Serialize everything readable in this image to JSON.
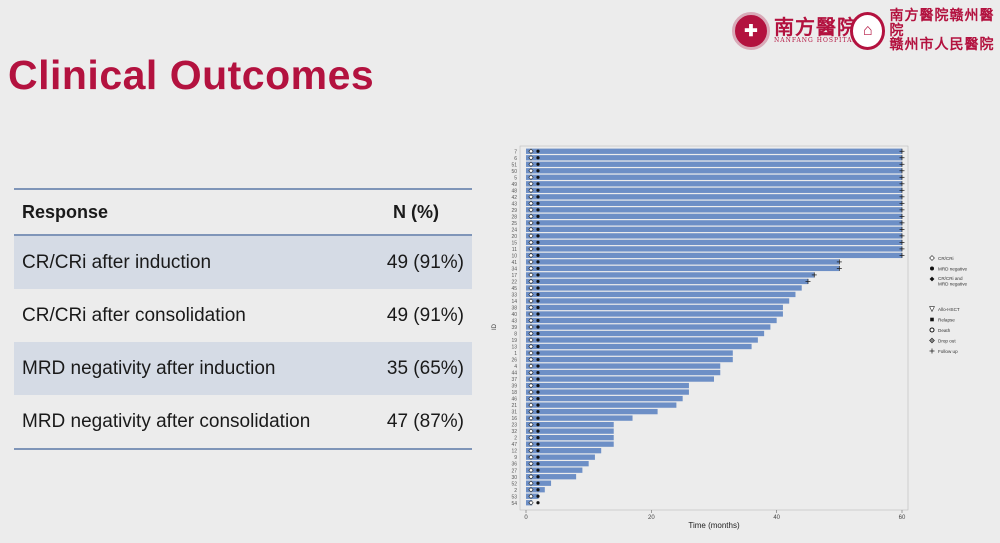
{
  "header": {
    "title": "Clinical Outcomes",
    "logo1_main": "南方醫院",
    "logo1_sub": "NANFANG HOSPITAL",
    "logo2_top": "南方醫院赣州醫院",
    "logo2_bottom": "赣州市人民醫院",
    "accent_color": "#b3123f"
  },
  "table": {
    "col_response": "Response",
    "col_n": "N (%)",
    "rows": [
      {
        "label": "CR/CRi after induction",
        "value": "49 (91%)"
      },
      {
        "label": "CR/CRi after consolidation",
        "value": "49 (91%)"
      },
      {
        "label": "MRD negativity after induction",
        "value": "35 (65%)"
      },
      {
        "label": "MRD negativity after consolidation",
        "value": "47 (87%)"
      }
    ]
  },
  "chart_data": {
    "type": "swimmer",
    "xlabel": "Time (months)",
    "ylabel": "ID",
    "xlim": [
      0,
      60
    ],
    "xticks": [
      0,
      20,
      40,
      60
    ],
    "bar_color": "#6d8fc6",
    "ids": [
      "7",
      "6",
      "51",
      "50",
      "5",
      "49",
      "48",
      "42",
      "43",
      "29",
      "28",
      "25",
      "24",
      "20",
      "15",
      "11",
      "10",
      "41",
      "34",
      "17",
      "22",
      "45",
      "33",
      "14",
      "38",
      "40",
      "43",
      "39",
      "8",
      "19",
      "13",
      "1",
      "26",
      "4",
      "44",
      "37",
      "39",
      "18",
      "46",
      "21",
      "31",
      "16",
      "23",
      "32",
      "2",
      "47",
      "12",
      "9",
      "36",
      "27",
      "30",
      "52",
      "2",
      "53",
      "54"
    ],
    "durations": [
      60,
      60,
      60,
      60,
      60,
      60,
      60,
      60,
      60,
      60,
      60,
      60,
      60,
      60,
      60,
      60,
      60,
      50,
      50,
      46,
      45,
      44,
      43,
      42,
      41,
      41,
      40,
      39,
      38,
      37,
      36,
      33,
      33,
      31,
      31,
      30,
      26,
      26,
      25,
      24,
      21,
      17,
      14,
      14,
      14,
      14,
      12,
      11,
      10,
      9,
      8,
      4,
      3,
      2,
      1
    ],
    "legend": [
      {
        "label": "CR/CRi",
        "symbol": "diamond-open"
      },
      {
        "label": "MRD negative",
        "symbol": "dot"
      },
      {
        "label": "CR/CRi and MRD negative",
        "symbol": "diamond-filled"
      },
      {
        "label": "Allo-HSCT",
        "symbol": "triangle-down"
      },
      {
        "label": "Relapse",
        "symbol": "square"
      },
      {
        "label": "Death",
        "symbol": "asterisk"
      },
      {
        "label": "Drop out",
        "symbol": "diamond-cross"
      },
      {
        "label": "Follow up",
        "symbol": "plus"
      }
    ]
  }
}
